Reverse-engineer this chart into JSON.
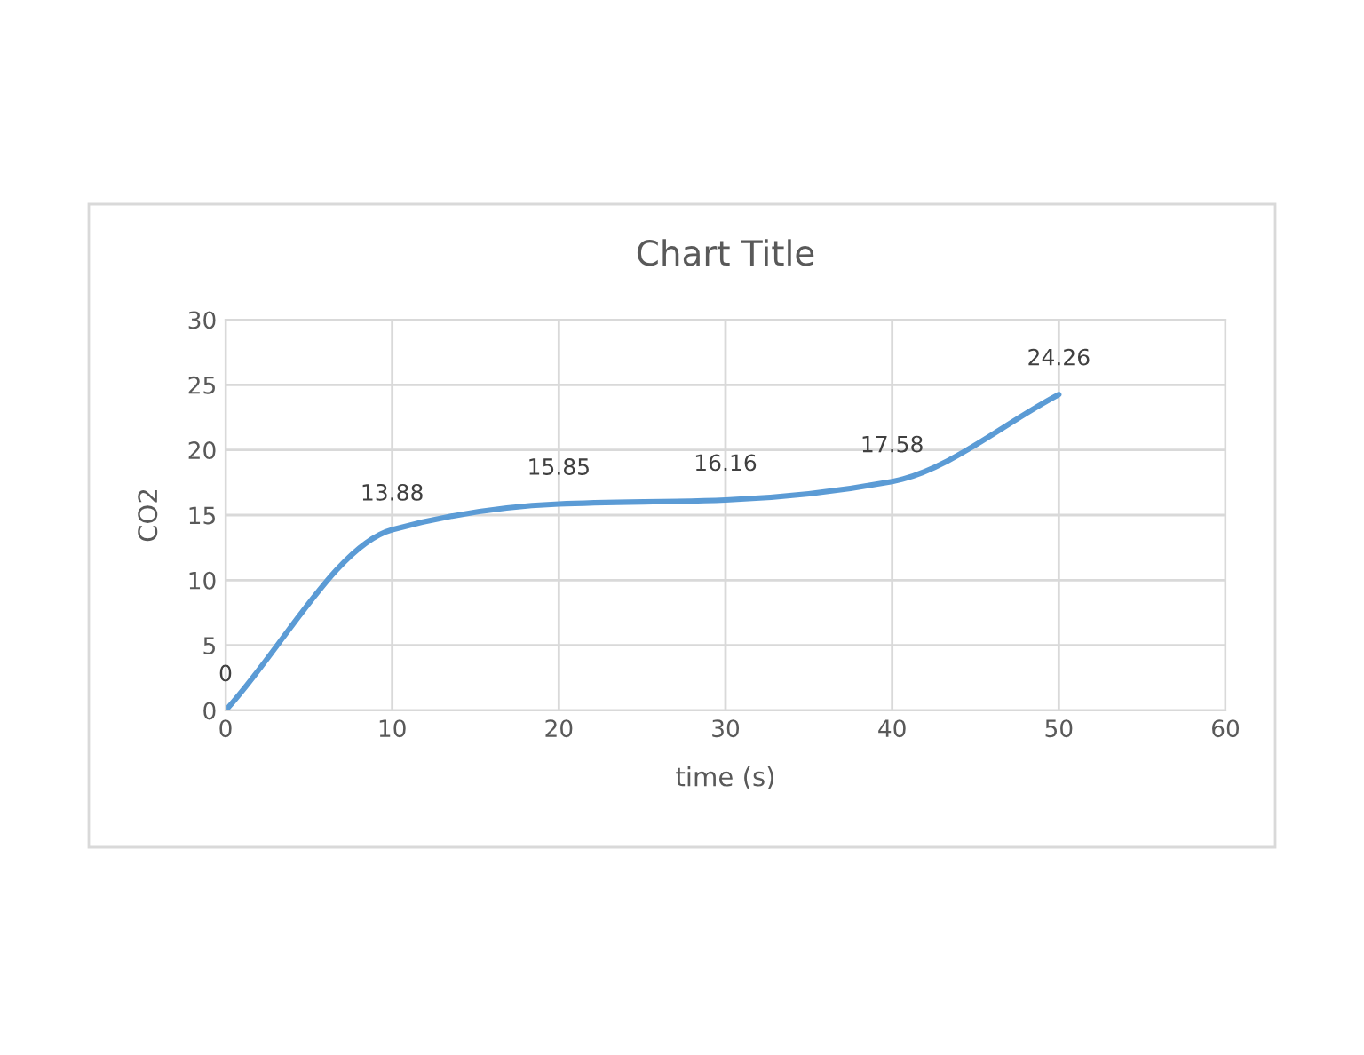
{
  "chart_data": {
    "type": "line",
    "title": "Chart Title",
    "xlabel": "time (s)",
    "ylabel": "CO2",
    "x": [
      0,
      10,
      20,
      30,
      40,
      50
    ],
    "series": [
      {
        "color": "#5b9bd5",
        "values": [
          0,
          13.88,
          15.85,
          16.16,
          17.58,
          24.26
        ]
      }
    ],
    "xlim": [
      0,
      60
    ],
    "xticks": [
      0,
      10,
      20,
      30,
      40,
      50,
      60
    ],
    "ylim": [
      0,
      30
    ],
    "yticks": [
      0,
      5,
      10,
      15,
      20,
      25,
      30
    ],
    "grid": true,
    "data_labels": true,
    "marker": "none",
    "line_style": "solid",
    "legend": false
  }
}
